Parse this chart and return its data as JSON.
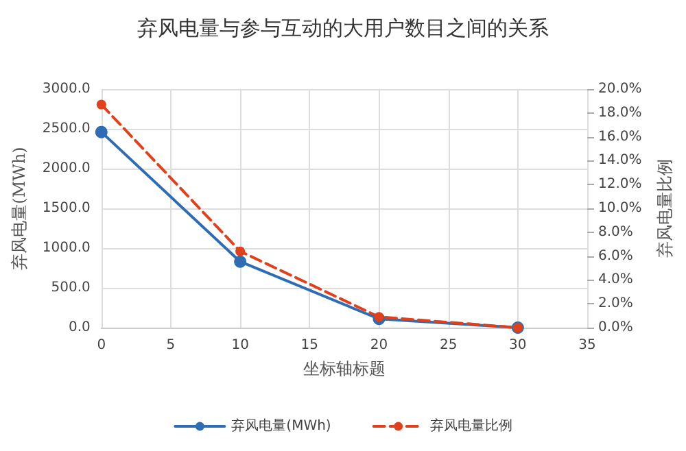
{
  "chart_data": {
    "type": "line",
    "title": "弃风电量与参与互动的大用户数目之间的关系",
    "xlabel": "坐标轴标题",
    "ylabel": "弃风电量(MWh)",
    "y2label": "弃风电量比例",
    "x": [
      0,
      10,
      20,
      30
    ],
    "series": [
      {
        "name": "弃风电量(MWh)",
        "color": "#2e6db4",
        "values": [
          2460,
          830,
          110,
          0
        ],
        "line_style": "solid"
      },
      {
        "name": "弃风电量比例",
        "color": "#e0401c",
        "values": [
          18.7,
          6.4,
          0.9,
          0
        ],
        "axis": "y2",
        "line_style": "dashed"
      }
    ],
    "xlim": [
      0,
      35
    ],
    "xticks": [
      0,
      5,
      10,
      15,
      20,
      25,
      30,
      35
    ],
    "ylim": [
      0,
      3000
    ],
    "yticks": [
      {
        "value": 0,
        "label": "0.0"
      },
      {
        "value": 500,
        "label": "500.0"
      },
      {
        "value": 1000,
        "label": "1000.0"
      },
      {
        "value": 1500,
        "label": "1500.0"
      },
      {
        "value": 2000,
        "label": "2000.0"
      },
      {
        "value": 2500,
        "label": "2500.0"
      },
      {
        "value": 3000,
        "label": "3000.0"
      }
    ],
    "y2lim": [
      0,
      20
    ],
    "y2ticks": [
      {
        "value": 0,
        "label": "0.0%"
      },
      {
        "value": 2,
        "label": "2.0%"
      },
      {
        "value": 4,
        "label": "4.0%"
      },
      {
        "value": 6,
        "label": "6.0%"
      },
      {
        "value": 8,
        "label": "8.0%"
      },
      {
        "value": 10,
        "label": "10.0%"
      },
      {
        "value": 12,
        "label": "12.0%"
      },
      {
        "value": 14,
        "label": "14.0%"
      },
      {
        "value": 16,
        "label": "16.0%"
      },
      {
        "value": 18,
        "label": "18.0%"
      },
      {
        "value": 20,
        "label": "20.0%"
      }
    ],
    "grid": true,
    "legend": "bottom",
    "marker": "circle"
  }
}
